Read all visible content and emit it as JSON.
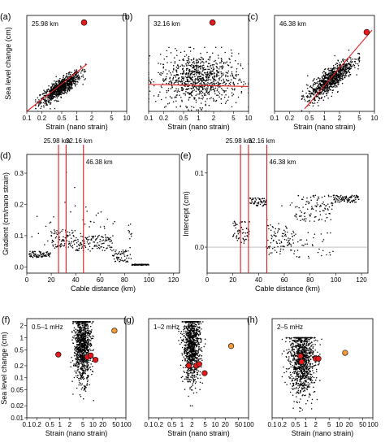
{
  "figure": {
    "colors": {
      "points": "#000000",
      "fit_line": "#e41a1c",
      "marker_red": "#e41a1c",
      "marker_orange": "#f59a3a",
      "zero_line": "#9a9a9a"
    }
  },
  "chart_data": [
    {
      "id": "a",
      "type": "scatter",
      "panel_label": "(a)",
      "inset_label": "25.98 km",
      "xscale": "log",
      "yscale": "log",
      "xlim": [
        0.1,
        10
      ],
      "ylim": [
        0.01,
        10
      ],
      "xlabel": "Strain (nano strain)",
      "ylabel": "Sea level change (cm)",
      "xticks": [
        "0.1",
        "0.2",
        "0.5",
        "1",
        "2",
        "5",
        "10"
      ],
      "yticks": [],
      "cloud": {
        "x_range": [
          0.15,
          1.5
        ],
        "y_range": [
          0.01,
          0.3
        ],
        "trend": "positive, tight",
        "approx_points": 1000
      },
      "fit_line": {
        "x": [
          0.1,
          1.6
        ],
        "y": [
          0.01,
          0.3
        ]
      },
      "highlight_points": [
        {
          "x": 1.4,
          "y": 6.0,
          "color": "red"
        }
      ]
    },
    {
      "id": "b",
      "type": "scatter",
      "panel_label": "(b)",
      "inset_label": "32.16 km",
      "xscale": "log",
      "yscale": "log",
      "xlim": [
        0.1,
        10
      ],
      "ylim": [
        0.01,
        10
      ],
      "xlabel": "Strain (nano strain)",
      "xticks": [
        "0.1",
        "0.2",
        "0.5",
        "1",
        "2",
        "5",
        "10"
      ],
      "cloud": {
        "x_range": [
          0.1,
          10
        ],
        "y_range": [
          0.01,
          1.0
        ],
        "trend": "flat, diffuse",
        "approx_points": 1000
      },
      "fit_line": {
        "x": [
          0.1,
          10
        ],
        "y": [
          0.07,
          0.06
        ]
      },
      "highlight_points": [
        {
          "x": 1.9,
          "y": 6.0,
          "color": "red"
        }
      ]
    },
    {
      "id": "c",
      "type": "scatter",
      "panel_label": "(c)",
      "inset_label": "46.38 km",
      "xscale": "log",
      "yscale": "log",
      "xlim": [
        0.1,
        10
      ],
      "ylim": [
        0.01,
        10
      ],
      "xlabel": "Strain (nano strain)",
      "xticks": [
        "0.1",
        "0.2",
        "0.5",
        "1",
        "2",
        "5",
        "10"
      ],
      "cloud": {
        "x_range": [
          0.35,
          5
        ],
        "y_range": [
          0.01,
          1.0
        ],
        "trend": "positive, very tight",
        "approx_points": 1000
      },
      "fit_line": {
        "x": [
          0.4,
          9.0
        ],
        "y": [
          0.012,
          3.5
        ]
      },
      "highlight_points": [
        {
          "x": 7.0,
          "y": 3.0,
          "color": "red"
        }
      ]
    },
    {
      "id": "d",
      "type": "scatter",
      "panel_label": "(d)",
      "xlim": [
        0,
        125
      ],
      "ylim": [
        -0.02,
        0.36
      ],
      "xlabel": "Cable distance (km)",
      "ylabel": "Gradient (cm/nano strain)",
      "xticks": [
        "0",
        "20",
        "40",
        "60",
        "80",
        "100",
        "120"
      ],
      "yticks": [
        "0.0",
        "0.1",
        "0.2",
        "0.3"
      ],
      "vlines": [
        {
          "x": 25.98,
          "label": "25.98 km"
        },
        {
          "x": 32.16,
          "label": "32.16 km"
        },
        {
          "x": 46.38,
          "label": "46.38 km"
        }
      ]
    },
    {
      "id": "e",
      "type": "scatter",
      "panel_label": "(e)",
      "xlim": [
        0,
        125
      ],
      "ylim": [
        -0.035,
        0.125
      ],
      "xlabel": "Cable distance (km)",
      "ylabel": "Intercept (cm)",
      "xticks": [
        "0",
        "20",
        "40",
        "60",
        "80",
        "100",
        "120"
      ],
      "yticks": [
        "0.0",
        "0.1"
      ],
      "zero_line": true,
      "vlines": [
        {
          "x": 25.98,
          "label": "25.98 km"
        },
        {
          "x": 32.16,
          "label": "32.16 km"
        },
        {
          "x": 46.38,
          "label": "46.38 km"
        }
      ]
    },
    {
      "id": "f",
      "type": "scatter",
      "panel_label": "(f)",
      "inset_label": "0.5–1 mHz",
      "xscale": "log",
      "yscale": "log",
      "xlim": [
        0.1,
        100
      ],
      "ylim": [
        0.01,
        3
      ],
      "xlabel": "Strain (nano strain)",
      "ylabel": "Sea level change (cm)",
      "xticks": [
        "0.1",
        "0.2",
        "0.5",
        "1",
        "2",
        "5",
        "10",
        "20",
        "50",
        "100"
      ],
      "yticks": [
        "0.01",
        "0.02",
        "0.05",
        "0.1",
        "0.2",
        "0.5",
        "1",
        "2"
      ],
      "cloud": {
        "x_range": [
          2,
          12
        ],
        "y_range": [
          0.02,
          2.5
        ],
        "trend": "vertical column",
        "approx_points": 1200
      },
      "highlight_points": [
        {
          "x": 0.9,
          "y": 0.38,
          "color": "red"
        },
        {
          "x": 6.8,
          "y": 0.33,
          "color": "red"
        },
        {
          "x": 8.6,
          "y": 0.36,
          "color": "red"
        },
        {
          "x": 12.0,
          "y": 0.28,
          "color": "red"
        },
        {
          "x": 45,
          "y": 1.5,
          "color": "orange"
        }
      ]
    },
    {
      "id": "g",
      "type": "scatter",
      "panel_label": "(g)",
      "inset_label": "1–2 mHz",
      "xscale": "log",
      "yscale": "log",
      "xlim": [
        0.1,
        100
      ],
      "ylim": [
        0.01,
        3
      ],
      "xlabel": "Strain (nano strain)",
      "xticks": [
        "0.1",
        "0.2",
        "0.5",
        "1",
        "2",
        "5",
        "10",
        "20",
        "50",
        "100"
      ],
      "cloud": {
        "x_range": [
          0.8,
          5
        ],
        "y_range": [
          0.02,
          2.5
        ],
        "trend": "vertical column",
        "approx_points": 1200
      },
      "highlight_points": [
        {
          "x": 1.6,
          "y": 0.2,
          "color": "red"
        },
        {
          "x": 2.7,
          "y": 0.2,
          "color": "red"
        },
        {
          "x": 3.3,
          "y": 0.22,
          "color": "red"
        },
        {
          "x": 4.8,
          "y": 0.13,
          "color": "red"
        },
        {
          "x": 30,
          "y": 0.62,
          "color": "orange"
        }
      ]
    },
    {
      "id": "h",
      "type": "scatter",
      "panel_label": "(h)",
      "inset_label": "2–5 mHz",
      "xscale": "log",
      "yscale": "log",
      "xlim": [
        0.1,
        100
      ],
      "ylim": [
        0.01,
        3
      ],
      "xlabel": "Strain (nano strain)",
      "xticks": [
        "0.1",
        "0.2",
        "0.5",
        "1",
        "2",
        "5",
        "10",
        "20",
        "50",
        "100"
      ],
      "cloud": {
        "x_range": [
          0.2,
          3
        ],
        "y_range": [
          0.01,
          1.0
        ],
        "trend": "vertical column",
        "approx_points": 1200
      },
      "highlight_points": [
        {
          "x": 0.7,
          "y": 0.35,
          "color": "red"
        },
        {
          "x": 0.75,
          "y": 0.25,
          "color": "red"
        },
        {
          "x": 2.0,
          "y": 0.3,
          "color": "red"
        },
        {
          "x": 2.4,
          "y": 0.3,
          "color": "red"
        },
        {
          "x": 15,
          "y": 0.42,
          "color": "orange"
        }
      ]
    }
  ]
}
